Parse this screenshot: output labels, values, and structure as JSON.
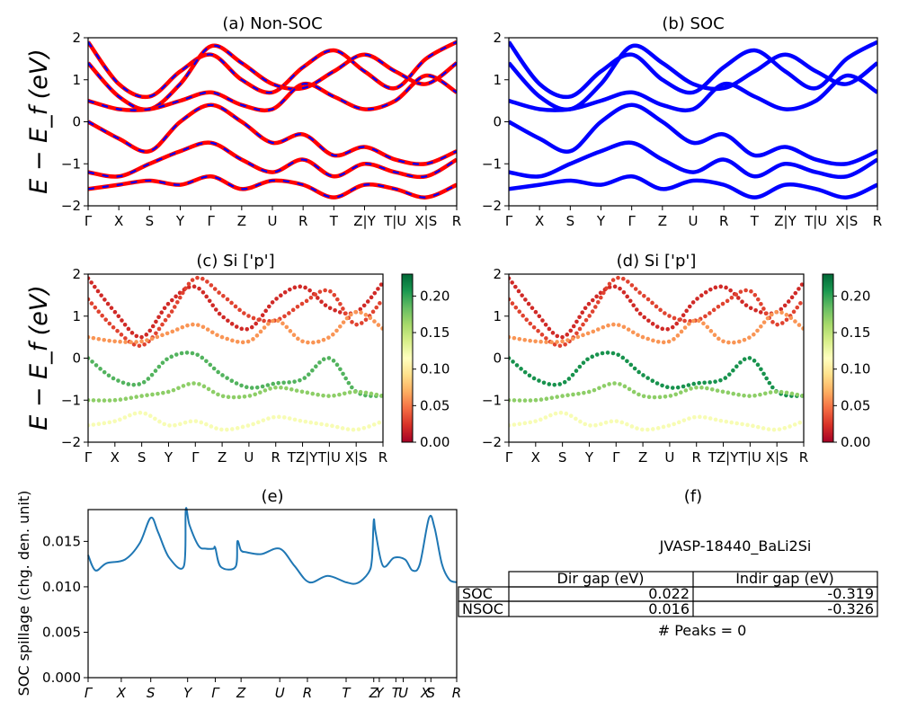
{
  "figure": {
    "panel_a_title": "(a) Non-SOC",
    "panel_b_title": "(b) SOC",
    "panel_c_title": "(c)  Si ['p']",
    "panel_d_title": "(d) Si ['p']",
    "panel_e_title": "(e)",
    "panel_f_title": "(f)",
    "band_ylabel": "E − E_f (eV)",
    "spillage_ylabel": "SOC spillage (chg. den. unit)"
  },
  "colors": {
    "non_soc_band": "#ff0000",
    "soc_band": "#0000ff",
    "spillage_line": "#1f77b4",
    "colormap": [
      "#a50026",
      "#d73027",
      "#f46d43",
      "#fdae61",
      "#fee08b",
      "#ffffbf",
      "#d9ef8b",
      "#a6d96a",
      "#66bd63",
      "#1a9850",
      "#006837"
    ]
  },
  "chart_data": [
    {
      "panel": "a",
      "type": "line",
      "title": "(a) Non-SOC",
      "ylabel": "E − E_f (eV)",
      "ylim": [
        -2,
        2
      ],
      "yticks": [
        -2,
        -1,
        0,
        1,
        2
      ],
      "kpath_labels": [
        "Γ",
        "X",
        "S",
        "Y",
        "Γ",
        "Z",
        "U",
        "R",
        "T",
        "Z|Y",
        "T|U",
        "X|S",
        "R"
      ],
      "series": [
        {
          "values": [
            1.9,
            0.9,
            0.6,
            1.2,
            1.6,
            1.0,
            0.7,
            1.3,
            1.7,
            1.2,
            0.8,
            1.5,
            1.9
          ]
        },
        {
          "values": [
            1.4,
            0.6,
            0.3,
            0.9,
            1.8,
            1.4,
            0.9,
            0.8,
            1.2,
            1.6,
            1.2,
            0.9,
            1.4
          ]
        },
        {
          "values": [
            0.5,
            0.3,
            0.3,
            0.5,
            0.7,
            0.4,
            0.3,
            0.9,
            0.6,
            0.3,
            0.5,
            1.1,
            0.7
          ]
        },
        {
          "values": [
            0.0,
            -0.4,
            -0.7,
            0.0,
            0.4,
            0.0,
            -0.5,
            -0.3,
            -0.8,
            -0.6,
            -0.9,
            -1.0,
            -0.7
          ]
        },
        {
          "values": [
            -1.2,
            -1.3,
            -1.0,
            -0.7,
            -0.5,
            -0.9,
            -1.2,
            -0.9,
            -1.3,
            -1.0,
            -1.2,
            -1.3,
            -0.9
          ]
        },
        {
          "values": [
            -1.6,
            -1.5,
            -1.4,
            -1.5,
            -1.3,
            -1.6,
            -1.4,
            -1.5,
            -1.8,
            -1.5,
            -1.6,
            -1.8,
            -1.5
          ]
        }
      ]
    },
    {
      "panel": "b",
      "type": "line",
      "title": "(b) SOC",
      "ylabel": "",
      "ylim": [
        -2,
        2
      ],
      "yticks": [
        -2,
        -1,
        0,
        1,
        2
      ],
      "kpath_labels": [
        "Γ",
        "X",
        "S",
        "Y",
        "Γ",
        "Z",
        "U",
        "R",
        "T",
        "Z|Y",
        "T|U",
        "X|S",
        "R"
      ],
      "series": [
        {
          "values": [
            1.9,
            0.9,
            0.6,
            1.2,
            1.6,
            1.0,
            0.7,
            1.3,
            1.7,
            1.2,
            0.8,
            1.5,
            1.9
          ]
        },
        {
          "values": [
            1.4,
            0.6,
            0.3,
            0.9,
            1.8,
            1.4,
            0.9,
            0.8,
            1.2,
            1.6,
            1.2,
            0.9,
            1.4
          ]
        },
        {
          "values": [
            0.5,
            0.3,
            0.3,
            0.5,
            0.7,
            0.4,
            0.3,
            0.9,
            0.6,
            0.3,
            0.5,
            1.1,
            0.7
          ]
        },
        {
          "values": [
            0.0,
            -0.4,
            -0.7,
            0.0,
            0.4,
            0.0,
            -0.5,
            -0.3,
            -0.8,
            -0.6,
            -0.9,
            -1.0,
            -0.7
          ]
        },
        {
          "values": [
            -1.2,
            -1.3,
            -1.0,
            -0.7,
            -0.5,
            -0.9,
            -1.2,
            -0.9,
            -1.3,
            -1.0,
            -1.2,
            -1.3,
            -0.9
          ]
        },
        {
          "values": [
            -1.6,
            -1.5,
            -1.4,
            -1.5,
            -1.3,
            -1.6,
            -1.4,
            -1.5,
            -1.8,
            -1.5,
            -1.6,
            -1.8,
            -1.5
          ]
        }
      ]
    },
    {
      "panel": "c",
      "type": "scatter",
      "title": "(c)  Si ['p']",
      "ylabel": "E − E_f (eV)",
      "ylim": [
        -2,
        2
      ],
      "yticks": [
        -2,
        -1,
        0,
        1,
        2
      ],
      "kpath_labels": [
        "Γ",
        "X",
        "S",
        "Y",
        "Γ",
        "Z",
        "U",
        "R",
        "TZ|Y",
        "T|U",
        "X|S",
        "R"
      ],
      "colorbar": {
        "range": [
          0,
          0.23
        ],
        "ticks": [
          "0.00",
          "0.05",
          "0.10",
          "0.15",
          "0.20"
        ]
      },
      "series": [
        {
          "values": [
            1.9,
            1.1,
            0.5,
            1.3,
            1.7,
            1.0,
            0.7,
            1.4,
            1.7,
            1.2,
            1.1,
            1.8
          ],
          "weight": 0.02
        },
        {
          "values": [
            1.4,
            0.7,
            0.3,
            1.0,
            1.9,
            1.5,
            1.0,
            0.9,
            1.3,
            1.6,
            0.8,
            1.4
          ],
          "weight": 0.03
        },
        {
          "values": [
            0.5,
            0.4,
            0.4,
            0.6,
            0.8,
            0.5,
            0.4,
            0.9,
            0.4,
            0.5,
            1.1,
            0.7
          ],
          "weight": 0.06
        },
        {
          "values": [
            0.0,
            -0.5,
            -0.6,
            0.0,
            0.1,
            -0.4,
            -0.7,
            -0.6,
            -0.5,
            0.0,
            -0.8,
            -0.9
          ],
          "weight": 0.19
        },
        {
          "values": [
            -1.0,
            -1.0,
            -0.9,
            -0.8,
            -0.6,
            -0.9,
            -0.9,
            -0.7,
            -0.8,
            -0.9,
            -0.8,
            -0.9
          ],
          "weight": 0.17
        },
        {
          "values": [
            -1.6,
            -1.5,
            -1.3,
            -1.6,
            -1.5,
            -1.7,
            -1.6,
            -1.4,
            -1.5,
            -1.6,
            -1.7,
            -1.5
          ],
          "weight": 0.12
        }
      ]
    },
    {
      "panel": "d",
      "type": "scatter",
      "title": "(d) Si ['p']",
      "ylabel": "",
      "ylim": [
        -2,
        2
      ],
      "yticks": [
        -2,
        -1,
        0,
        1,
        2
      ],
      "kpath_labels": [
        "Γ",
        "X",
        "S",
        "Y",
        "Γ",
        "Z",
        "U",
        "R",
        "TZ|Y",
        "T|U",
        "X|S",
        "R"
      ],
      "colorbar": {
        "range": [
          0,
          0.23
        ],
        "ticks": [
          "0.00",
          "0.05",
          "0.10",
          "0.15",
          "0.20"
        ]
      },
      "series": [
        {
          "values": [
            1.9,
            1.1,
            0.5,
            1.3,
            1.7,
            1.0,
            0.7,
            1.4,
            1.7,
            1.2,
            1.1,
            1.8
          ],
          "weight": 0.02
        },
        {
          "values": [
            1.4,
            0.7,
            0.3,
            1.0,
            1.9,
            1.5,
            1.0,
            0.9,
            1.3,
            1.6,
            0.8,
            1.4
          ],
          "weight": 0.03
        },
        {
          "values": [
            0.5,
            0.4,
            0.4,
            0.6,
            0.8,
            0.5,
            0.4,
            0.9,
            0.4,
            0.5,
            1.1,
            0.7
          ],
          "weight": 0.06
        },
        {
          "values": [
            0.0,
            -0.5,
            -0.6,
            0.0,
            0.1,
            -0.4,
            -0.7,
            -0.6,
            -0.5,
            0.0,
            -0.8,
            -0.9
          ],
          "weight": 0.21
        },
        {
          "values": [
            -1.0,
            -1.0,
            -0.9,
            -0.8,
            -0.6,
            -0.9,
            -0.9,
            -0.7,
            -0.8,
            -0.9,
            -0.8,
            -0.9
          ],
          "weight": 0.17
        },
        {
          "values": [
            -1.6,
            -1.5,
            -1.3,
            -1.6,
            -1.5,
            -1.7,
            -1.6,
            -1.4,
            -1.5,
            -1.6,
            -1.7,
            -1.5
          ],
          "weight": 0.12
        }
      ]
    },
    {
      "panel": "e",
      "type": "line",
      "title": "(e)",
      "ylabel": "SOC spillage (chg. den. unit)",
      "ylim": [
        0,
        0.0185
      ],
      "yticks": [
        "0.000",
        "0.005",
        "0.010",
        "0.015"
      ],
      "kpath_labels": [
        "Γ",
        "X",
        "S",
        "Y",
        "Γ",
        "Z",
        "U",
        "R",
        "T",
        "Z",
        "Y",
        "T",
        "U",
        "X",
        "S",
        "R"
      ],
      "kpath_positions": [
        0,
        0.09,
        0.17,
        0.27,
        0.345,
        0.415,
        0.52,
        0.595,
        0.7,
        0.775,
        0.79,
        0.835,
        0.855,
        0.915,
        0.93,
        1.0
      ],
      "x": [
        0,
        0.02,
        0.05,
        0.1,
        0.14,
        0.17,
        0.19,
        0.22,
        0.26,
        0.265,
        0.275,
        0.3,
        0.32,
        0.34,
        0.345,
        0.36,
        0.4,
        0.405,
        0.415,
        0.43,
        0.47,
        0.52,
        0.56,
        0.6,
        0.65,
        0.7,
        0.73,
        0.76,
        0.77,
        0.775,
        0.78,
        0.8,
        0.83,
        0.86,
        0.88,
        0.9,
        0.925,
        0.94,
        0.96,
        0.98,
        1.0
      ],
      "values": [
        0.0135,
        0.0118,
        0.0126,
        0.013,
        0.0148,
        0.0176,
        0.016,
        0.0132,
        0.0123,
        0.0185,
        0.0168,
        0.0145,
        0.0142,
        0.0142,
        0.0143,
        0.0122,
        0.0122,
        0.015,
        0.014,
        0.0138,
        0.0136,
        0.0142,
        0.0123,
        0.0105,
        0.0112,
        0.0105,
        0.0104,
        0.0115,
        0.013,
        0.0173,
        0.016,
        0.0123,
        0.0132,
        0.013,
        0.0118,
        0.0125,
        0.0176,
        0.0165,
        0.0125,
        0.0108,
        0.0105
      ]
    },
    {
      "panel": "f",
      "type": "table",
      "title": "(f)",
      "material": "JVASP-18440_BaLi2Si",
      "columns": [
        "Dir gap (eV)",
        "Indir gap (eV)"
      ],
      "rows": [
        {
          "label": "SOC",
          "values": [
            "0.022",
            "-0.319"
          ]
        },
        {
          "label": "NSOC",
          "values": [
            "0.016",
            "-0.326"
          ]
        }
      ],
      "footer": "# Peaks = 0"
    }
  ]
}
